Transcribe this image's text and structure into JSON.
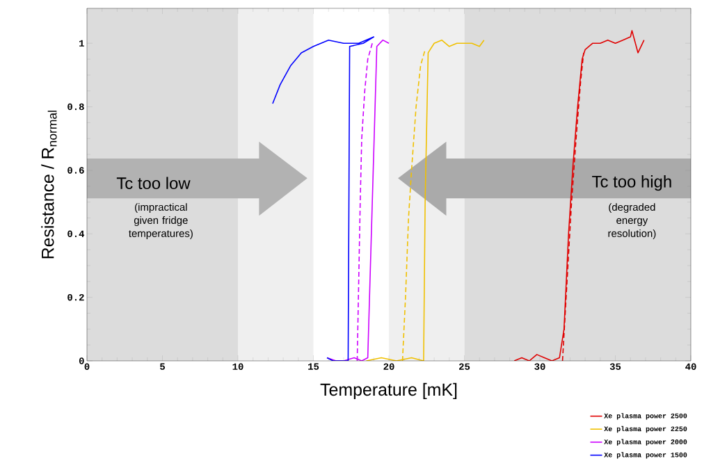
{
  "chart_data": {
    "type": "line",
    "xlabel": "Temperature [mK]",
    "ylabel": "Resistance / R$_{normal}$",
    "xlim": [
      0,
      40
    ],
    "ylim": [
      0,
      1.11
    ],
    "xticks": [
      0,
      5,
      10,
      15,
      20,
      25,
      30,
      35,
      40
    ],
    "yticks": [
      0,
      0.2,
      0.4,
      0.6,
      0.8,
      1
    ],
    "grid": false,
    "legend": "bottom right",
    "marker": "none",
    "bands": [
      {
        "axis": "x",
        "from": 0,
        "to": 10,
        "color": "#dcdcdc"
      },
      {
        "axis": "x",
        "from": 10,
        "to": 15,
        "color": "#efefef"
      },
      {
        "axis": "x",
        "from": 20,
        "to": 25,
        "color": "#efefef"
      },
      {
        "axis": "x",
        "from": 25,
        "to": 40,
        "color": "#dcdcdc"
      }
    ],
    "annotations": [
      "Tc too low",
      "(impractical given fridge temperatures)",
      "Tc too high",
      "(degraded energy resolution)"
    ],
    "series": [
      {
        "name": "Xe plasma power 2500",
        "color": "#e00000",
        "line_style": "solid",
        "x": [
          28.3,
          28.8,
          29.3,
          29.8,
          30.3,
          30.8,
          31.3,
          31.6,
          31.9,
          32.2,
          32.5,
          32.8,
          33.0,
          33.5,
          34.0,
          34.5,
          35.0,
          35.5,
          36.0,
          36.1,
          36.5,
          36.9
        ],
        "values": [
          0.0,
          0.01,
          0.0,
          0.02,
          0.01,
          0.0,
          0.01,
          0.1,
          0.4,
          0.62,
          0.8,
          0.95,
          0.98,
          1.0,
          1.0,
          1.01,
          1.0,
          1.01,
          1.02,
          1.04,
          0.97,
          1.01
        ]
      },
      {
        "name": "Xe plasma power 2250",
        "color": "#f0c000",
        "line_style": "solid",
        "x": [
          18.5,
          19.5,
          20.5,
          21.5,
          22.3,
          22.4,
          22.6,
          23.0,
          23.5,
          24.0,
          24.5,
          25.0,
          25.5,
          26.0,
          26.3
        ],
        "values": [
          0.0,
          0.01,
          0.0,
          0.01,
          0.0,
          0.5,
          0.97,
          1.0,
          1.01,
          0.99,
          1.0,
          1.0,
          1.0,
          0.99,
          1.01
        ]
      },
      {
        "name": "Xe plasma power 2000",
        "color": "#cc00ff",
        "line_style": "solid",
        "x": [
          15.9,
          16.5,
          17.0,
          17.7,
          18.2,
          18.6,
          18.9,
          19.2,
          19.6,
          20.0
        ],
        "values": [
          0.01,
          0.0,
          0.0,
          0.01,
          0.0,
          0.01,
          0.5,
          0.99,
          1.01,
          1.0
        ]
      },
      {
        "name": "Xe plasma power 1500",
        "color": "#0000ff",
        "line_style": "solid",
        "x": [
          12.3,
          12.8,
          13.5,
          14.2,
          15.0,
          16.0,
          17.0,
          18.0,
          19.0,
          18.3,
          17.4,
          17.3,
          16.3,
          15.9
        ],
        "values": [
          0.81,
          0.87,
          0.93,
          0.97,
          0.99,
          1.01,
          1.0,
          1.0,
          1.02,
          1.0,
          0.99,
          0.0,
          0.0,
          0.01
        ]
      },
      {
        "color": "#e00000",
        "line_style": "dashed",
        "x": [
          31.5,
          31.8,
          32.1,
          32.4,
          32.7,
          32.9
        ],
        "values": [
          0.0,
          0.25,
          0.5,
          0.7,
          0.88,
          0.97
        ]
      },
      {
        "color": "#f0c000",
        "line_style": "dashed",
        "x": [
          20.9,
          21.1,
          21.3,
          21.5,
          21.8,
          22.1,
          22.4
        ],
        "values": [
          0.0,
          0.2,
          0.45,
          0.6,
          0.8,
          0.93,
          0.98
        ]
      },
      {
        "color": "#cc00ff",
        "line_style": "dashed",
        "x": [
          17.9,
          18.0,
          18.1,
          18.2,
          18.4,
          18.6,
          18.9
        ],
        "values": [
          0.0,
          0.25,
          0.5,
          0.7,
          0.85,
          0.95,
          1.0
        ]
      }
    ]
  }
}
